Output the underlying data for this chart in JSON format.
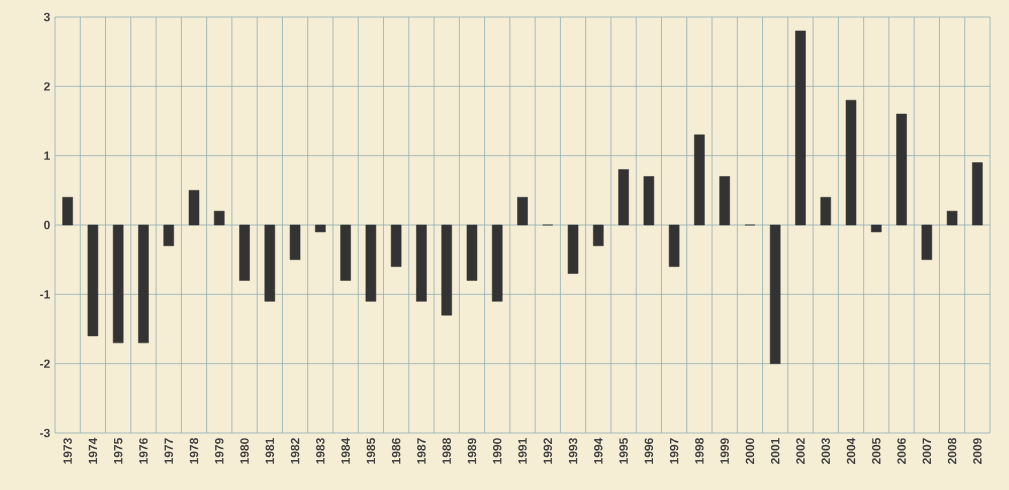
{
  "chart_data": {
    "type": "bar",
    "categories": [
      "1973",
      "1974",
      "1975",
      "1976",
      "1977",
      "1978",
      "1979",
      "1980",
      "1981",
      "1982",
      "1983",
      "1984",
      "1985",
      "1986",
      "1987",
      "1988",
      "1989",
      "1990",
      "1991",
      "1992",
      "1993",
      "1994",
      "1995",
      "1996",
      "1997",
      "1998",
      "1999",
      "2000",
      "2001",
      "2002",
      "2003",
      "2004",
      "2005",
      "2006",
      "2007",
      "2008",
      "2009"
    ],
    "values": [
      0.4,
      -1.6,
      -1.7,
      -1.7,
      -0.3,
      0.5,
      0.2,
      -0.8,
      -1.1,
      -0.5,
      -0.1,
      -0.8,
      -1.1,
      -0.6,
      -1.1,
      -1.3,
      -0.8,
      -1.1,
      0.4,
      0,
      -0.7,
      -0.3,
      0.8,
      0.7,
      -0.6,
      1.3,
      0.7,
      0,
      -2.0,
      2.8,
      0.4,
      1.8,
      -0.1,
      1.6,
      -0.5,
      0.2,
      0.9
    ],
    "color": "#333333",
    "ylim": [
      -3,
      3
    ],
    "yticks": [
      -3,
      -2,
      -1,
      0,
      1,
      2,
      3
    ],
    "grid": true
  }
}
